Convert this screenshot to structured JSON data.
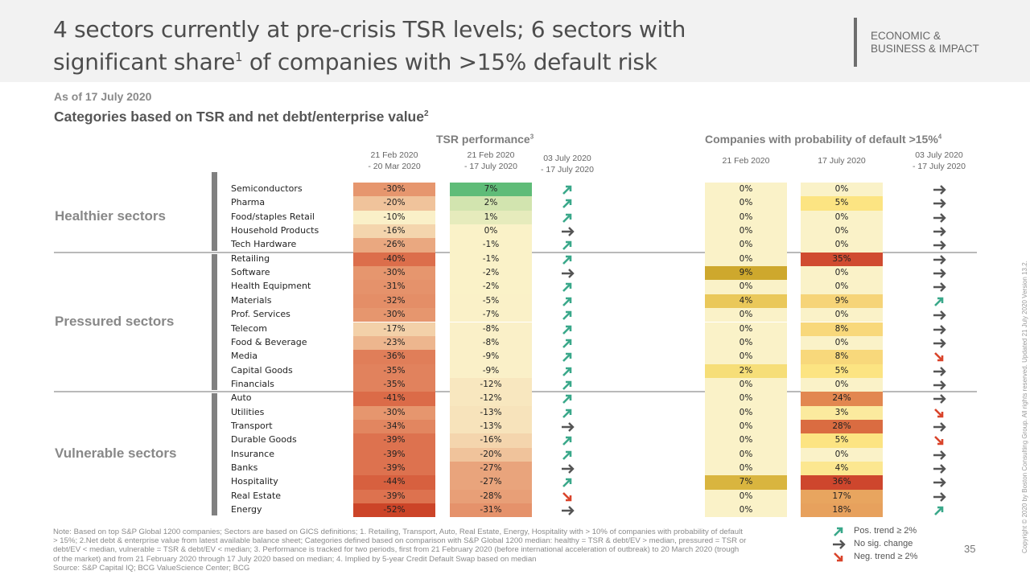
{
  "header": {
    "title_line1": "4 sectors currently at pre-crisis TSR levels; 6 sectors with",
    "title_line2_a": "significant share",
    "title_line2_sup": "1",
    "title_line2_b": " of companies with >15% default risk",
    "tag_line1": "ECONOMIC &",
    "tag_line2": "BUSINESS & IMPACT"
  },
  "subtitle": "As of 17 July 2020",
  "heading": "Categories based on TSR and net debt/enterprise value",
  "heading_sup": "2",
  "colors": {
    "pos_trend": "#3aa88a",
    "no_change": "#555555",
    "neg_trend": "#d9442b",
    "separator": "#b9b9b9",
    "group_bar": "#808080"
  },
  "legend": {
    "pos": "Pos. trend ≥ 2%",
    "none": "No sig. change",
    "neg": "Neg. trend ≥ 2%"
  },
  "footer": {
    "note_line1": "Note: Based on top S&P Global 1200 companies; Sectors are based on GICS definitions;  1. Retailing, Transport, Auto, Real Estate, Energy, Hospitality with > 10% of companies with probability of default",
    "note_line2": "> 15%;  2.Net debt & enterprise value from latest available balance sheet; Categories defined based on comparison with S&P Global 1200 median: healthy = TSR & debt/EV > median, pressured = TSR or",
    "note_line3": "debt/EV < median, vulnerable = TSR & debt/EV < median;  3. Performance is tracked for two periods, first from 21 February 2020 (before international acceleration of outbreak) to 20 March 2020 (trough",
    "note_line4": "of the market) and from 21 February 2020 through 17 July 2020 based on median;  4. Implied by 5-year Credit Default Swap based on median",
    "source": "Source: S&P Capital IQ; BCG ValueScience Center; BCG",
    "page_number": "35",
    "copyright": "Copyright © 2020 by Boston Consulting Group. All rights reserved. Updated 21 July 2020 Version 13.2."
  },
  "chart_data": {
    "type": "table",
    "title": "Categories based on TSR and net debt/enterprise value",
    "column_groups": [
      {
        "title": "TSR performance",
        "footnote": "3"
      },
      {
        "title": "Companies with probability of default >15%",
        "footnote": "4"
      }
    ],
    "columns": [
      {
        "key": "tsr_crash",
        "group": 0,
        "header_line1": "21 Feb 2020",
        "header_line2": "- 20 Mar 2020",
        "unit": "%"
      },
      {
        "key": "tsr_ytd",
        "group": 0,
        "header_line1": "21 Feb 2020",
        "header_line2": "- 17 July 2020",
        "unit": "%"
      },
      {
        "key": "tsr_trend",
        "group": 0,
        "header_line1": "03 July 2020",
        "header_line2": "- 17 July 2020",
        "unit": "trend"
      },
      {
        "key": "pd_feb",
        "group": 1,
        "header_line1": "21 Feb 2020",
        "header_line2": "",
        "unit": "%"
      },
      {
        "key": "pd_jul",
        "group": 1,
        "header_line1": "17 July 2020",
        "header_line2": "",
        "unit": "%"
      },
      {
        "key": "pd_trend",
        "group": 1,
        "header_line1": "03 July 2020",
        "header_line2": "- 17 July 2020",
        "unit": "trend"
      }
    ],
    "groups": [
      {
        "label": "Healthier sectors",
        "rows": [
          0,
          4
        ]
      },
      {
        "label": "Pressured sectors",
        "rows": [
          5,
          14
        ]
      },
      {
        "label": "Vulnerable sectors",
        "rows": [
          15,
          23
        ]
      }
    ],
    "rows": [
      {
        "sector": "Semiconductors",
        "tsr_crash": -30,
        "tsr_ytd": 7,
        "tsr_trend": "up",
        "pd_feb": 0,
        "pd_jul": 0,
        "pd_trend": "flat"
      },
      {
        "sector": "Pharma",
        "tsr_crash": -20,
        "tsr_ytd": 2,
        "tsr_trend": "up",
        "pd_feb": 0,
        "pd_jul": 5,
        "pd_trend": "flat"
      },
      {
        "sector": "Food/staples Retail",
        "tsr_crash": -10,
        "tsr_ytd": 1,
        "tsr_trend": "up",
        "pd_feb": 0,
        "pd_jul": 0,
        "pd_trend": "flat"
      },
      {
        "sector": "Household Products",
        "tsr_crash": -16,
        "tsr_ytd": 0,
        "tsr_trend": "flat",
        "pd_feb": 0,
        "pd_jul": 0,
        "pd_trend": "flat"
      },
      {
        "sector": "Tech Hardware",
        "tsr_crash": -26,
        "tsr_ytd": -1,
        "tsr_trend": "up",
        "pd_feb": 0,
        "pd_jul": 0,
        "pd_trend": "flat"
      },
      {
        "sector": "Retailing",
        "tsr_crash": -40,
        "tsr_ytd": -1,
        "tsr_trend": "up",
        "pd_feb": 0,
        "pd_jul": 35,
        "pd_trend": "flat"
      },
      {
        "sector": "Software",
        "tsr_crash": -30,
        "tsr_ytd": -2,
        "tsr_trend": "flat",
        "pd_feb": 9,
        "pd_jul": 0,
        "pd_trend": "flat"
      },
      {
        "sector": "Health Equipment",
        "tsr_crash": -31,
        "tsr_ytd": -2,
        "tsr_trend": "up",
        "pd_feb": 0,
        "pd_jul": 0,
        "pd_trend": "flat"
      },
      {
        "sector": "Materials",
        "tsr_crash": -32,
        "tsr_ytd": -5,
        "tsr_trend": "up",
        "pd_feb": 4,
        "pd_jul": 9,
        "pd_trend": "up"
      },
      {
        "sector": "Prof. Services",
        "tsr_crash": -30,
        "tsr_ytd": -7,
        "tsr_trend": "up",
        "pd_feb": 0,
        "pd_jul": 0,
        "pd_trend": "flat"
      },
      {
        "sector": "Telecom",
        "tsr_crash": -17,
        "tsr_ytd": -8,
        "tsr_trend": "up",
        "pd_feb": 0,
        "pd_jul": 8,
        "pd_trend": "flat"
      },
      {
        "sector": "Food & Beverage",
        "tsr_crash": -23,
        "tsr_ytd": -8,
        "tsr_trend": "up",
        "pd_feb": 0,
        "pd_jul": 0,
        "pd_trend": "flat"
      },
      {
        "sector": "Media",
        "tsr_crash": -36,
        "tsr_ytd": -9,
        "tsr_trend": "up",
        "pd_feb": 0,
        "pd_jul": 8,
        "pd_trend": "down"
      },
      {
        "sector": "Capital Goods",
        "tsr_crash": -35,
        "tsr_ytd": -9,
        "tsr_trend": "up",
        "pd_feb": 2,
        "pd_jul": 5,
        "pd_trend": "flat"
      },
      {
        "sector": "Financials",
        "tsr_crash": -35,
        "tsr_ytd": -12,
        "tsr_trend": "up",
        "pd_feb": 0,
        "pd_jul": 0,
        "pd_trend": "flat"
      },
      {
        "sector": "Auto",
        "tsr_crash": -41,
        "tsr_ytd": -12,
        "tsr_trend": "up",
        "pd_feb": 0,
        "pd_jul": 24,
        "pd_trend": "flat"
      },
      {
        "sector": "Utilities",
        "tsr_crash": -30,
        "tsr_ytd": -13,
        "tsr_trend": "up",
        "pd_feb": 0,
        "pd_jul": 3,
        "pd_trend": "down"
      },
      {
        "sector": "Transport",
        "tsr_crash": -34,
        "tsr_ytd": -13,
        "tsr_trend": "flat",
        "pd_feb": 0,
        "pd_jul": 28,
        "pd_trend": "flat"
      },
      {
        "sector": "Durable Goods",
        "tsr_crash": -39,
        "tsr_ytd": -16,
        "tsr_trend": "up",
        "pd_feb": 0,
        "pd_jul": 5,
        "pd_trend": "down"
      },
      {
        "sector": "Insurance",
        "tsr_crash": -39,
        "tsr_ytd": -20,
        "tsr_trend": "up",
        "pd_feb": 0,
        "pd_jul": 0,
        "pd_trend": "flat"
      },
      {
        "sector": "Banks",
        "tsr_crash": -39,
        "tsr_ytd": -27,
        "tsr_trend": "flat",
        "pd_feb": 0,
        "pd_jul": 4,
        "pd_trend": "flat"
      },
      {
        "sector": "Hospitality",
        "tsr_crash": -44,
        "tsr_ytd": -27,
        "tsr_trend": "up",
        "pd_feb": 7,
        "pd_jul": 36,
        "pd_trend": "flat"
      },
      {
        "sector": "Real Estate",
        "tsr_crash": -39,
        "tsr_ytd": -28,
        "tsr_trend": "down",
        "pd_feb": 0,
        "pd_jul": 17,
        "pd_trend": "flat"
      },
      {
        "sector": "Energy",
        "tsr_crash": -52,
        "tsr_ytd": -31,
        "tsr_trend": "flat",
        "pd_feb": 0,
        "pd_jul": 18,
        "pd_trend": "up"
      }
    ]
  }
}
